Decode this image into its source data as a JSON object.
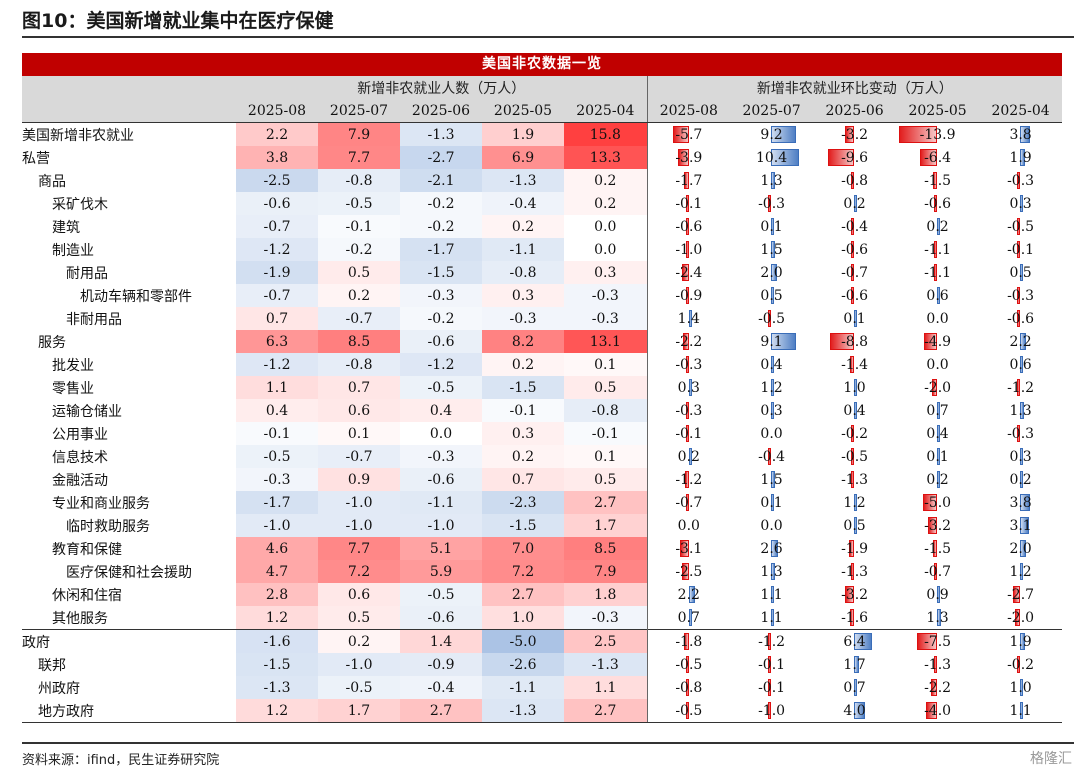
{
  "figure_title": "图10：美国新增就业集中在医疗保健",
  "source_note": "资料来源：ifind，民生证券研究院",
  "watermark": "格隆汇",
  "chart_data": {
    "type": "table",
    "title": "美国非农数据一览",
    "group_headers": [
      "新增非农就业人数（万人）",
      "新增非农就业环比变动（万人）"
    ],
    "periods": [
      "2025-08",
      "2025-07",
      "2025-06",
      "2025-05",
      "2025-04"
    ],
    "colors": {
      "positive_heat": "#e8262a",
      "negative_heat": "#3a70c2",
      "bar_positive": "#3a6db8",
      "bar_negative": "#e02020"
    },
    "rows": [
      {
        "label": "美国新增非农就业",
        "level": 0,
        "level_values": [
          "2.2",
          "7.9",
          "-1.3",
          "1.9",
          "15.8"
        ],
        "change_values": [
          "-5.7",
          "9.2",
          "-3.2",
          "-13.9",
          "3.8"
        ]
      },
      {
        "label": "私营",
        "level": 0,
        "level_values": [
          "3.8",
          "7.7",
          "-2.7",
          "6.9",
          "13.3"
        ],
        "change_values": [
          "-3.9",
          "10.4",
          "-9.6",
          "-6.4",
          "1.9"
        ]
      },
      {
        "label": "商品",
        "level": 1,
        "level_values": [
          "-2.5",
          "-0.8",
          "-2.1",
          "-1.3",
          "0.2"
        ],
        "change_values": [
          "-1.7",
          "1.3",
          "-0.8",
          "-1.5",
          "-0.3"
        ]
      },
      {
        "label": "采矿伐木",
        "level": 2,
        "level_values": [
          "-0.6",
          "-0.5",
          "-0.2",
          "-0.4",
          "0.2"
        ],
        "change_values": [
          "-0.1",
          "-0.3",
          "0.2",
          "-0.6",
          "0.3"
        ]
      },
      {
        "label": "建筑",
        "level": 2,
        "level_values": [
          "-0.7",
          "-0.1",
          "-0.2",
          "0.2",
          "0.0"
        ],
        "change_values": [
          "-0.6",
          "0.1",
          "-0.4",
          "0.2",
          "-0.5"
        ]
      },
      {
        "label": "制造业",
        "level": 2,
        "level_values": [
          "-1.2",
          "-0.2",
          "-1.7",
          "-1.1",
          "0.0"
        ],
        "change_values": [
          "-1.0",
          "1.5",
          "-0.6",
          "-1.1",
          "-0.1"
        ]
      },
      {
        "label": "耐用品",
        "level": 3,
        "level_values": [
          "-1.9",
          "0.5",
          "-1.5",
          "-0.8",
          "0.3"
        ],
        "change_values": [
          "-2.4",
          "2.0",
          "-0.7",
          "-1.1",
          "0.5"
        ]
      },
      {
        "label": "机动车辆和零部件",
        "level": 4,
        "level_values": [
          "-0.7",
          "0.2",
          "-0.3",
          "0.3",
          "-0.3"
        ],
        "change_values": [
          "-0.9",
          "0.5",
          "-0.6",
          "0.6",
          "-0.3"
        ]
      },
      {
        "label": "非耐用品",
        "level": 3,
        "level_values": [
          "0.7",
          "-0.7",
          "-0.2",
          "-0.3",
          "-0.3"
        ],
        "change_values": [
          "1.4",
          "-0.5",
          "0.1",
          "0.0",
          "-0.6"
        ]
      },
      {
        "label": "服务",
        "level": 1,
        "level_values": [
          "6.3",
          "8.5",
          "-0.6",
          "8.2",
          "13.1"
        ],
        "change_values": [
          "-2.2",
          "9.1",
          "-8.8",
          "-4.9",
          "2.2"
        ]
      },
      {
        "label": "批发业",
        "level": 2,
        "level_values": [
          "-1.2",
          "-0.8",
          "-1.2",
          "0.2",
          "0.1"
        ],
        "change_values": [
          "-0.3",
          "0.4",
          "-1.4",
          "0.0",
          "0.6"
        ]
      },
      {
        "label": "零售业",
        "level": 2,
        "level_values": [
          "1.1",
          "0.7",
          "-0.5",
          "-1.5",
          "0.5"
        ],
        "change_values": [
          "0.3",
          "1.2",
          "1.0",
          "-2.0",
          "-1.2"
        ]
      },
      {
        "label": "运输仓储业",
        "level": 2,
        "level_values": [
          "0.4",
          "0.6",
          "0.4",
          "-0.1",
          "-0.8"
        ],
        "change_values": [
          "-0.3",
          "0.3",
          "0.4",
          "0.7",
          "1.3"
        ]
      },
      {
        "label": "公用事业",
        "level": 2,
        "level_values": [
          "-0.1",
          "0.1",
          "0.0",
          "0.3",
          "-0.1"
        ],
        "change_values": [
          "-0.1",
          "0.0",
          "-0.2",
          "0.4",
          "-0.3"
        ]
      },
      {
        "label": "信息技术",
        "level": 2,
        "level_values": [
          "-0.5",
          "-0.7",
          "-0.3",
          "0.2",
          "0.1"
        ],
        "change_values": [
          "0.2",
          "-0.4",
          "-0.5",
          "0.1",
          "0.3"
        ]
      },
      {
        "label": "金融活动",
        "level": 2,
        "level_values": [
          "-0.3",
          "0.9",
          "-0.6",
          "0.7",
          "0.5"
        ],
        "change_values": [
          "-1.2",
          "1.5",
          "-1.3",
          "0.2",
          "0.2"
        ]
      },
      {
        "label": "专业和商业服务",
        "level": 2,
        "level_values": [
          "-1.7",
          "-1.0",
          "-1.1",
          "-2.3",
          "2.7"
        ],
        "change_values": [
          "-0.7",
          "0.1",
          "1.2",
          "-5.0",
          "3.8"
        ]
      },
      {
        "label": "临时救助服务",
        "level": 3,
        "level_values": [
          "-1.0",
          "-1.0",
          "-1.0",
          "-1.5",
          "1.7"
        ],
        "change_values": [
          "0.0",
          "0.0",
          "0.5",
          "-3.2",
          "3.1"
        ]
      },
      {
        "label": "教育和保健",
        "level": 2,
        "level_values": [
          "4.6",
          "7.7",
          "5.1",
          "7.0",
          "8.5"
        ],
        "change_values": [
          "-3.1",
          "2.6",
          "-1.9",
          "-1.5",
          "2.0"
        ]
      },
      {
        "label": "医疗保健和社会援助",
        "level": 3,
        "level_values": [
          "4.7",
          "7.2",
          "5.9",
          "7.2",
          "7.9"
        ],
        "change_values": [
          "-2.5",
          "1.3",
          "-1.3",
          "-0.7",
          "1.2"
        ]
      },
      {
        "label": "休闲和住宿",
        "level": 2,
        "level_values": [
          "2.8",
          "0.6",
          "-0.5",
          "2.7",
          "1.8"
        ],
        "change_values": [
          "2.2",
          "1.1",
          "-3.2",
          "0.9",
          "-2.7"
        ]
      },
      {
        "label": "其他服务",
        "level": 2,
        "level_values": [
          "1.2",
          "0.5",
          "-0.6",
          "1.0",
          "-0.3"
        ],
        "change_values": [
          "0.7",
          "1.1",
          "-1.6",
          "1.3",
          "-2.0"
        ]
      },
      {
        "label": "政府",
        "level": 0,
        "level_values": [
          "-1.6",
          "0.2",
          "1.4",
          "-5.0",
          "2.5"
        ],
        "change_values": [
          "-1.8",
          "-1.2",
          "6.4",
          "-7.5",
          "1.9"
        ]
      },
      {
        "label": "联邦",
        "level": 1,
        "level_values": [
          "-1.5",
          "-1.0",
          "-0.9",
          "-2.6",
          "-1.3"
        ],
        "change_values": [
          "-0.5",
          "-0.1",
          "1.7",
          "-1.3",
          "-0.2"
        ]
      },
      {
        "label": "州政府",
        "level": 1,
        "level_values": [
          "-1.3",
          "-0.5",
          "-0.4",
          "-1.1",
          "1.1"
        ],
        "change_values": [
          "-0.8",
          "-0.1",
          "0.7",
          "-2.2",
          "1.0"
        ]
      },
      {
        "label": "地方政府",
        "level": 1,
        "level_values": [
          "1.2",
          "1.7",
          "2.7",
          "-1.3",
          "2.7"
        ],
        "change_values": [
          "-0.5",
          "-1.0",
          "4.0",
          "-4.0",
          "1.1"
        ]
      }
    ]
  }
}
